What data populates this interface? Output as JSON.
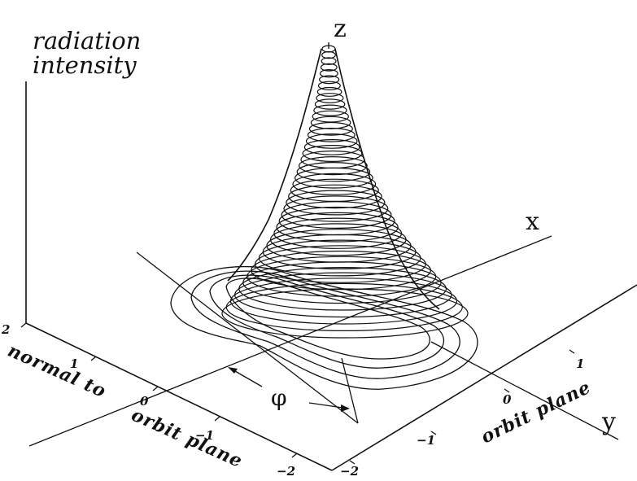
{
  "diagram": {
    "ylabel_line1": "radiation",
    "ylabel_line2": "intensity",
    "z_label": "z",
    "x_label": "x",
    "y_label": "y",
    "phi_label": "φ",
    "left_axis_title_1": "normal to",
    "left_axis_title_2": "orbit plane",
    "right_axis_title": "orbit plane",
    "left_ticks": [
      "2",
      "1",
      "0",
      "−1",
      "−2"
    ],
    "right_ticks": [
      "1",
      "0",
      "−1",
      "−2"
    ]
  }
}
